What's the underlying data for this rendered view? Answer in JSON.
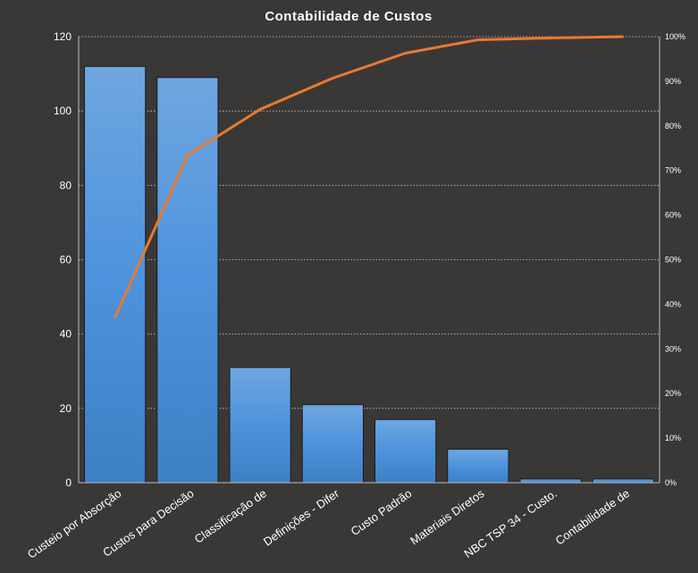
{
  "chart_data": {
    "type": "bar",
    "title": "Contabilidade  de Custos",
    "xlabel": "",
    "ylabel": "",
    "categories": [
      "Custeio por Absorção",
      "Custos para Decisão",
      "Classificação de",
      "Definições - Difer",
      "Custo Padrão",
      "Materiais Diretos",
      "NBC TSP 34 - Custo.",
      "Contabilidade de"
    ],
    "series": [
      {
        "type": "bar",
        "values": [
          112,
          109,
          31,
          21,
          17,
          9,
          1,
          1
        ]
      },
      {
        "type": "line",
        "axis": "secondary",
        "values": [
          37,
          73.4,
          83.7,
          90.7,
          96.3,
          99.3,
          99.7,
          100
        ]
      }
    ],
    "ylim": [
      0,
      120
    ],
    "yticks": [
      0,
      20,
      40,
      60,
      80,
      100,
      120
    ],
    "y2lim": [
      0,
      100
    ],
    "y2ticks": [
      "0%",
      "10%",
      "20%",
      "30%",
      "40%",
      "50%",
      "60%",
      "70%",
      "80%",
      "90%",
      "100%"
    ],
    "grid": true,
    "legend": "none",
    "colors": {
      "bar_top": "#6fa6e0",
      "bar_mid": "#4d93dd",
      "bar_bottom": "#3d80c4",
      "line": "#e87a30",
      "background": "#3a3837"
    }
  }
}
